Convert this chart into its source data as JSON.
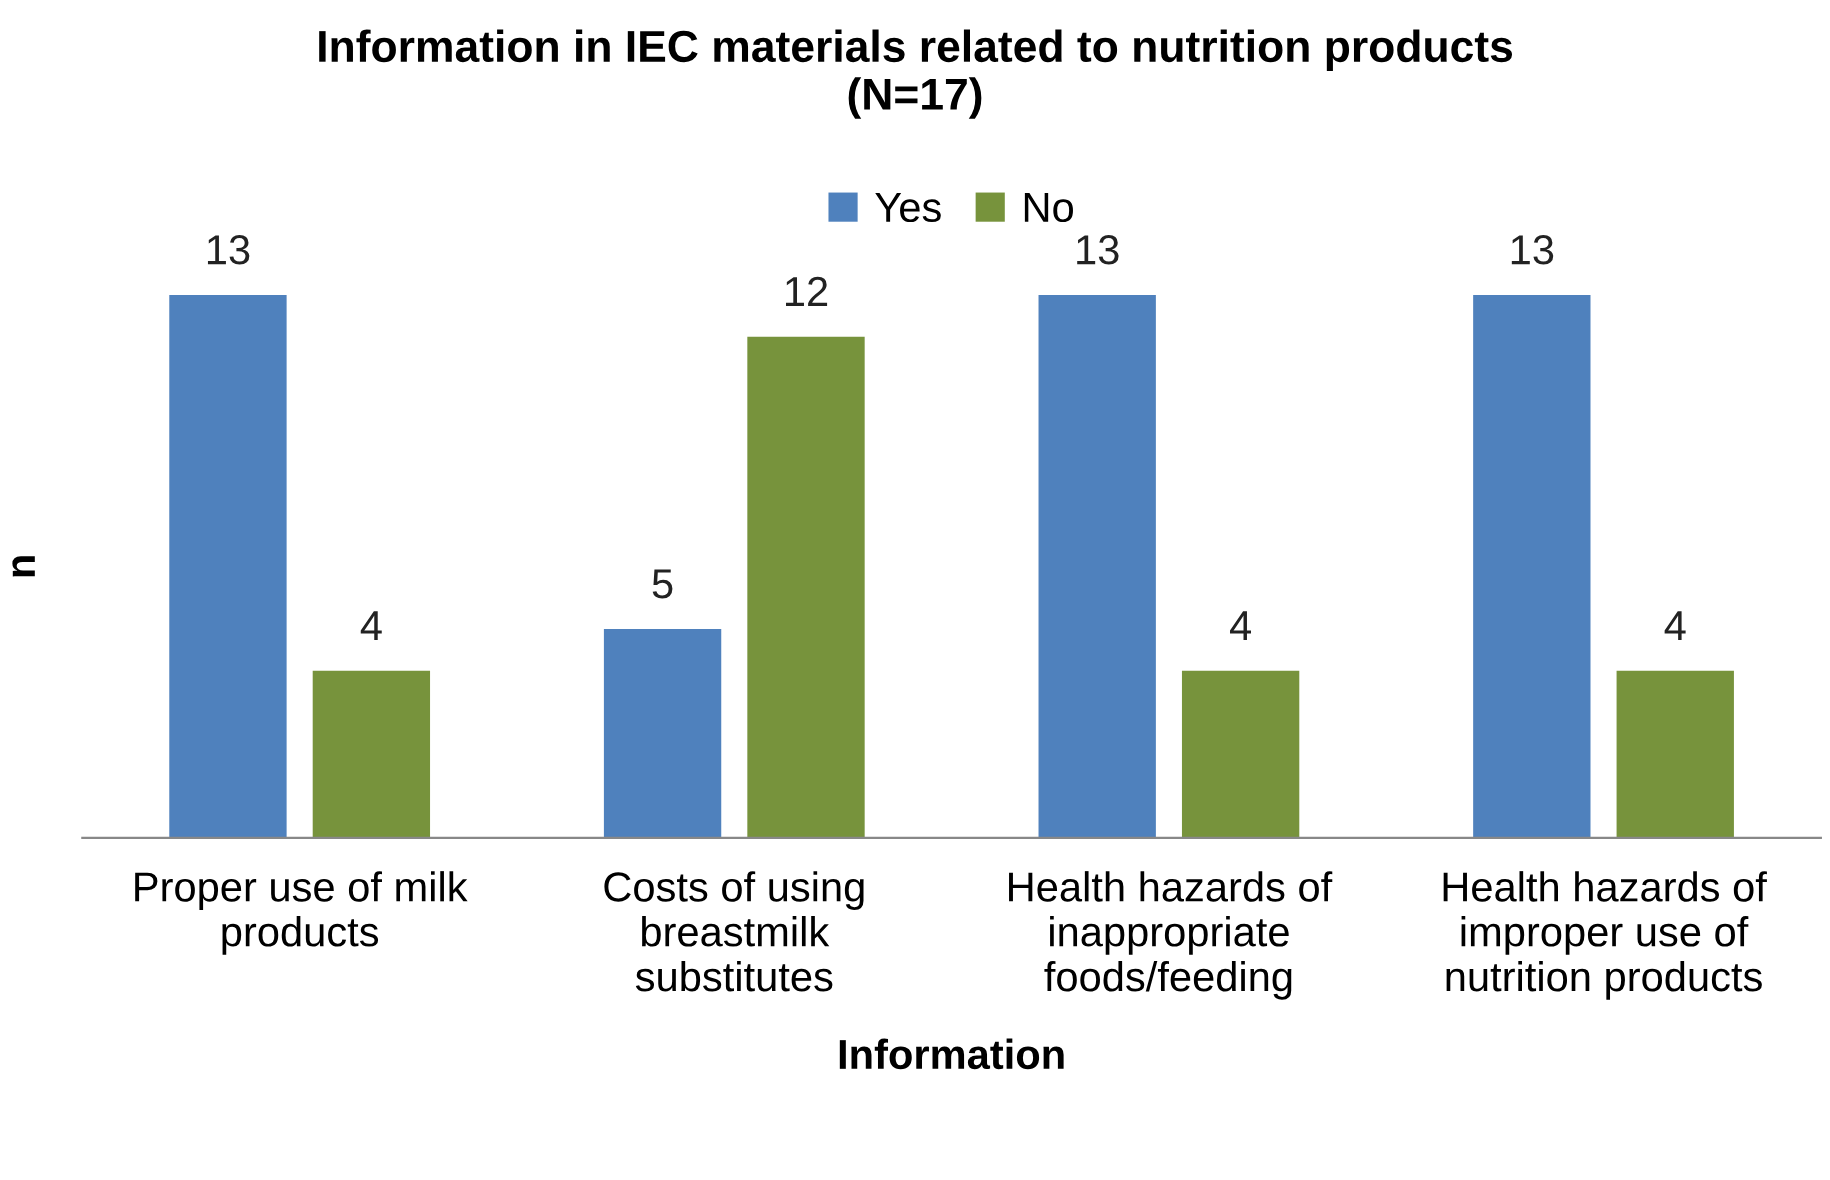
{
  "chart_data": {
    "type": "bar",
    "title": "Information in IEC materials related to nutrition products\n(N=17)",
    "xlabel": "Information",
    "ylabel": "n",
    "categories": [
      "Proper use of milk products",
      "Costs of using breastmilk substitutes",
      "Health hazards of inappropriate foods/feeding",
      "Health hazards of improper use of nutrition products"
    ],
    "series": [
      {
        "name": "Yes",
        "color": "#4f81bd",
        "values": [
          13,
          5,
          13,
          13
        ]
      },
      {
        "name": "No",
        "color": "#77933c",
        "values": [
          4,
          12,
          4,
          4
        ]
      }
    ],
    "data_labels": true,
    "legend": "top",
    "grid": false,
    "tick_labels": "x"
  }
}
